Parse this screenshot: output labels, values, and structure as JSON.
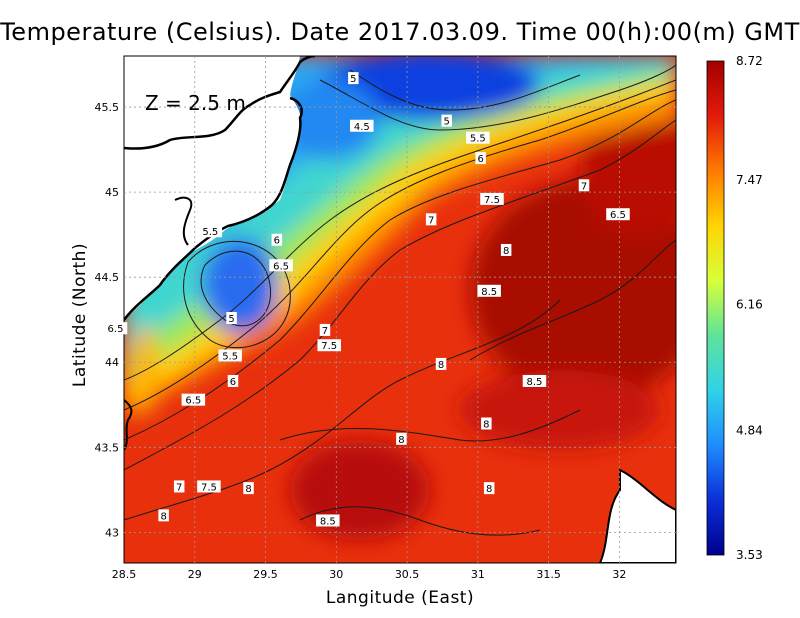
{
  "title": "Temperature (Celsius). Date 2017.03.09. Time 00(h):00(m) GMT",
  "xlabel": "Langitude (East)",
  "ylabel": "Latitude (North)",
  "depth_label": "Z = 2.5 m",
  "x_ticks": [
    "28.5",
    "29",
    "29.5",
    "30",
    "30.5",
    "31",
    "31.5",
    "32"
  ],
  "y_ticks": [
    "45.5",
    "45",
    "44.5",
    "44",
    "43.5",
    "43"
  ],
  "colorbar": {
    "min": 3.53,
    "max": 8.72,
    "labels": [
      "8.72",
      "7.47",
      "6.16",
      "4.84",
      "3.53"
    ],
    "colors": [
      "#a30000",
      "#e31a0b",
      "#ff7a00",
      "#ffd400",
      "#d8ff3a",
      "#5fe39a",
      "#2fd3e8",
      "#1f8cff",
      "#0b2fd8",
      "#00008f"
    ]
  },
  "contour_labels": [
    {
      "text": "5",
      "lon": 30.12,
      "lat": 45.67
    },
    {
      "text": "4.5",
      "lon": 30.18,
      "lat": 45.39
    },
    {
      "text": "5",
      "lon": 30.78,
      "lat": 45.42
    },
    {
      "text": "5.5",
      "lon": 31.0,
      "lat": 45.32
    },
    {
      "text": "6",
      "lon": 31.02,
      "lat": 45.2
    },
    {
      "text": "7",
      "lon": 31.75,
      "lat": 45.04
    },
    {
      "text": "7.5",
      "lon": 31.1,
      "lat": 44.96
    },
    {
      "text": "6.5",
      "lon": 31.99,
      "lat": 44.87
    },
    {
      "text": "7",
      "lon": 30.67,
      "lat": 44.84
    },
    {
      "text": "5.5",
      "lon": 29.11,
      "lat": 44.77
    },
    {
      "text": "6",
      "lon": 29.58,
      "lat": 44.72
    },
    {
      "text": "8",
      "lon": 31.2,
      "lat": 44.66
    },
    {
      "text": "6.5",
      "lon": 29.61,
      "lat": 44.57
    },
    {
      "text": "8.5",
      "lon": 31.08,
      "lat": 44.42
    },
    {
      "text": "5",
      "lon": 29.26,
      "lat": 44.26
    },
    {
      "text": "6.5",
      "lon": 28.44,
      "lat": 44.2
    },
    {
      "text": "7",
      "lon": 29.92,
      "lat": 44.19
    },
    {
      "text": "7.5",
      "lon": 29.95,
      "lat": 44.1
    },
    {
      "text": "5.5",
      "lon": 29.25,
      "lat": 44.04
    },
    {
      "text": "8",
      "lon": 30.74,
      "lat": 43.99
    },
    {
      "text": "6",
      "lon": 29.27,
      "lat": 43.89
    },
    {
      "text": "8.5",
      "lon": 31.4,
      "lat": 43.89
    },
    {
      "text": "6.5",
      "lon": 28.99,
      "lat": 43.78
    },
    {
      "text": "8",
      "lon": 31.06,
      "lat": 43.64
    },
    {
      "text": "8",
      "lon": 30.46,
      "lat": 43.55
    },
    {
      "text": "7",
      "lon": 28.89,
      "lat": 43.27
    },
    {
      "text": "7.5",
      "lon": 29.1,
      "lat": 43.27
    },
    {
      "text": "8",
      "lon": 29.38,
      "lat": 43.26
    },
    {
      "text": "8",
      "lon": 31.08,
      "lat": 43.26
    },
    {
      "text": "8",
      "lon": 28.78,
      "lat": 43.1
    },
    {
      "text": "8.5",
      "lon": 29.94,
      "lat": 43.07
    }
  ]
}
